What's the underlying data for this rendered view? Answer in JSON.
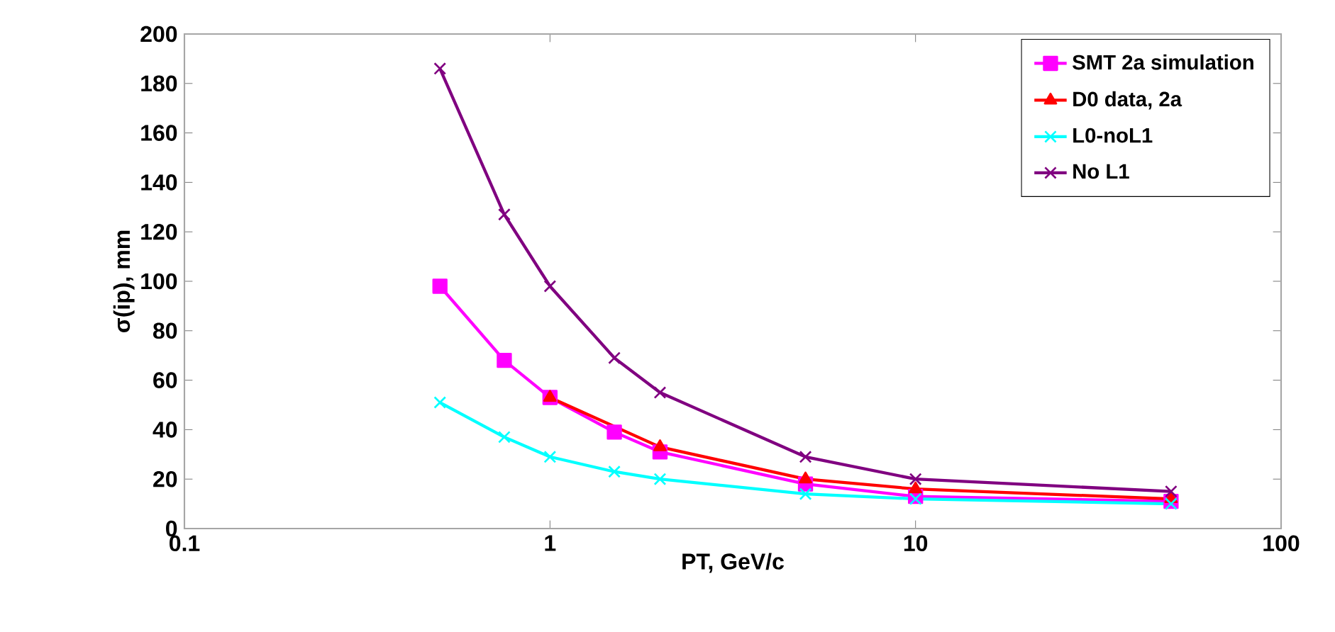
{
  "chart_data": {
    "type": "line",
    "xlabel": "PT, GeV/c",
    "ylabel": "σ(ip), mm",
    "log": "x",
    "xlim": [
      0.1,
      100
    ],
    "xticks": [
      0.1,
      1,
      10,
      100
    ],
    "ylim": [
      0,
      200
    ],
    "yticks": [
      0,
      20,
      40,
      60,
      80,
      100,
      120,
      140,
      160,
      180,
      200
    ],
    "grid": false,
    "legend": "top right",
    "line_style": "solid",
    "series": [
      {
        "name": "SMT 2a simulation",
        "color": "#ff00ff",
        "marker": "square",
        "x": [
          0.5,
          0.75,
          1,
          1.5,
          2,
          5,
          10,
          50
        ],
        "values": [
          98,
          68,
          53,
          39,
          31,
          18,
          13,
          11
        ]
      },
      {
        "name": "D0 data, 2a",
        "color": "#ff0000",
        "marker": "triangle",
        "x": [
          1,
          2,
          5,
          10,
          50
        ],
        "values": [
          53,
          33,
          20,
          16,
          12
        ]
      },
      {
        "name": "L0-noL1",
        "color": "#00ffff",
        "marker": "cross",
        "x": [
          0.5,
          0.75,
          1,
          1.5,
          2,
          5,
          10,
          50
        ],
        "values": [
          51,
          37,
          29,
          23,
          20,
          14,
          12,
          10
        ]
      },
      {
        "name": "No L1",
        "color": "#800080",
        "marker": "cross",
        "x": [
          0.5,
          0.75,
          1,
          1.5,
          2,
          5,
          10,
          50
        ],
        "values": [
          186,
          127,
          98,
          69,
          55,
          29,
          20,
          15
        ]
      }
    ]
  }
}
